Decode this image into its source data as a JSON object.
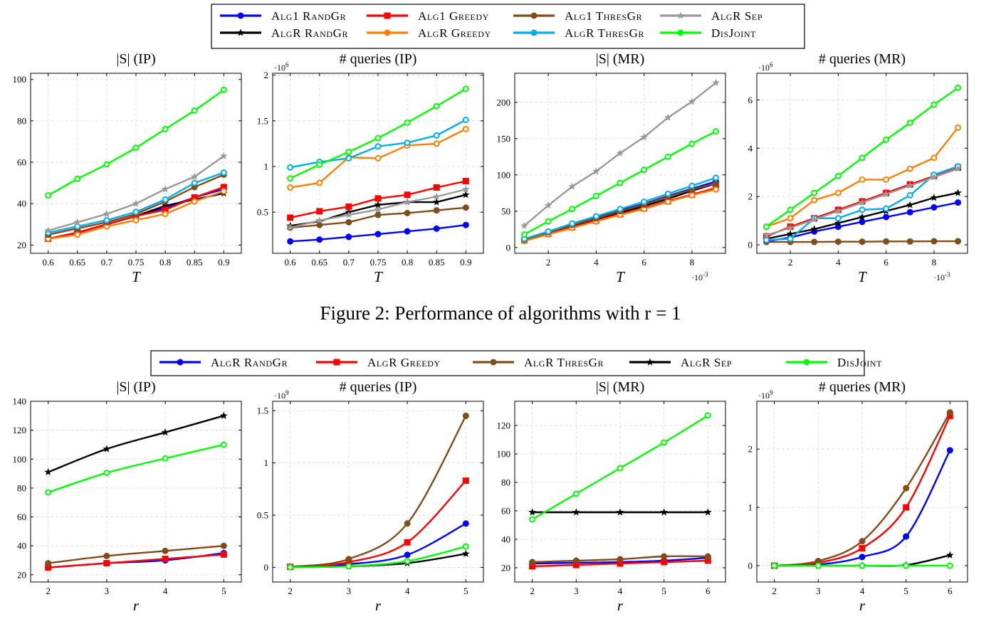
{
  "figure1": {
    "caption": "Figure 2: Performance of algorithms with r = 1",
    "legend": [
      {
        "label": "Alg1 RandGr",
        "color": "#0000ff",
        "marker": "circle"
      },
      {
        "label": "AlgR RandGr",
        "color": "#000000",
        "marker": "star"
      },
      {
        "label": "Alg1 Greedy",
        "color": "#ff0000",
        "marker": "square"
      },
      {
        "label": "AlgR Greedy",
        "color": "#ff8000",
        "marker": "circle"
      },
      {
        "label": "Alg1 ThresGr",
        "color": "#804d1a",
        "marker": "circle"
      },
      {
        "label": "AlgR ThresGr",
        "color": "#00aeef",
        "marker": "circle"
      },
      {
        "label": "AlgR Sep",
        "color": "#999999",
        "marker": "star"
      },
      {
        "label": "DisJoint",
        "color": "#00ff00",
        "marker": "circle"
      }
    ]
  },
  "figure2": {
    "legend": [
      {
        "label": "AlgR RandGr",
        "color": "#0000ff",
        "marker": "circle"
      },
      {
        "label": "AlgR Greedy",
        "color": "#ff0000",
        "marker": "square"
      },
      {
        "label": "AlgR ThresGr",
        "color": "#804d1a",
        "marker": "circle"
      },
      {
        "label": "AlgR Sep",
        "color": "#000000",
        "marker": "star"
      },
      {
        "label": "DisJoint",
        "color": "#00ff00",
        "marker": "circle"
      }
    ]
  },
  "chart_data": [
    {
      "type": "line",
      "title": "|S| (IP)",
      "xlabel": "T",
      "ylabel": "",
      "x": [
        0.6,
        0.65,
        0.7,
        0.75,
        0.8,
        0.85,
        0.9
      ],
      "xticks": [
        "0.6",
        "0.65",
        "0.7",
        "0.75",
        "0.8",
        "0.85",
        "0.9"
      ],
      "xlim": [
        0.57,
        0.93
      ],
      "yticks": [
        20,
        40,
        60,
        80,
        100
      ],
      "ylim": [
        16,
        103
      ],
      "scale_label": "",
      "grid": true,
      "series": [
        {
          "name": "Alg1 RandGr",
          "values": [
            23,
            26,
            30,
            34,
            38,
            43,
            47
          ]
        },
        {
          "name": "AlgR RandGr",
          "values": [
            23,
            26,
            30,
            34,
            39,
            42,
            45
          ]
        },
        {
          "name": "Alg1 Greedy",
          "values": [
            23,
            26,
            30,
            34,
            37,
            43,
            48
          ]
        },
        {
          "name": "AlgR Greedy",
          "values": [
            23,
            25,
            29,
            32,
            35,
            41,
            46
          ]
        },
        {
          "name": "Alg1 ThresGr",
          "values": [
            25,
            28,
            31,
            35,
            41,
            48,
            54
          ]
        },
        {
          "name": "AlgR ThresGr",
          "values": [
            26,
            29,
            32,
            36,
            42,
            50,
            55
          ]
        },
        {
          "name": "AlgR Sep",
          "values": [
            27,
            31,
            35,
            40,
            47,
            53,
            63
          ]
        },
        {
          "name": "DisJoint",
          "values": [
            44,
            52,
            59,
            67,
            76,
            85,
            95
          ]
        }
      ]
    },
    {
      "type": "line",
      "title": "# queries (IP)",
      "xlabel": "T",
      "ylabel": "",
      "x": [
        0.6,
        0.65,
        0.7,
        0.75,
        0.8,
        0.85,
        0.9
      ],
      "xticks": [
        "0.6",
        "0.65",
        "0.7",
        "0.75",
        "0.8",
        "0.85",
        "0.9"
      ],
      "xlim": [
        0.57,
        0.93
      ],
      "yticks": [
        0.5,
        1,
        1.5,
        2
      ],
      "ytick_labels": [
        "0.5",
        "1",
        "1.5",
        "2"
      ],
      "ylim": [
        0.05,
        2.02
      ],
      "scale_label": "·10^6",
      "grid": true,
      "series": [
        {
          "name": "Alg1 RandGr",
          "values": [
            0.18,
            0.2,
            0.23,
            0.26,
            0.29,
            0.32,
            0.36
          ]
        },
        {
          "name": "AlgR RandGr",
          "values": [
            0.35,
            0.4,
            0.5,
            0.58,
            0.61,
            0.61,
            0.69
          ]
        },
        {
          "name": "Alg1 Greedy",
          "values": [
            0.44,
            0.51,
            0.56,
            0.65,
            0.69,
            0.77,
            0.84
          ]
        },
        {
          "name": "AlgR Greedy",
          "values": [
            0.77,
            0.82,
            1.1,
            1.09,
            1.23,
            1.25,
            1.41
          ]
        },
        {
          "name": "Alg1 ThresGr",
          "values": [
            0.33,
            0.36,
            0.39,
            0.47,
            0.49,
            0.52,
            0.55
          ]
        },
        {
          "name": "AlgR ThresGr",
          "values": [
            0.99,
            1.05,
            1.09,
            1.22,
            1.26,
            1.34,
            1.51
          ]
        },
        {
          "name": "AlgR Sep",
          "values": [
            0.33,
            0.41,
            0.47,
            0.53,
            0.61,
            0.67,
            0.75
          ]
        },
        {
          "name": "DisJoint",
          "values": [
            0.87,
            1.02,
            1.16,
            1.31,
            1.48,
            1.66,
            1.85
          ]
        }
      ]
    },
    {
      "type": "line",
      "title": "|S| (MR)",
      "xlabel": "T",
      "ylabel": "",
      "x": [
        1,
        2,
        3,
        4,
        5,
        6,
        7,
        8,
        9
      ],
      "xticks": [
        "2",
        "4",
        "6",
        "8"
      ],
      "xtick_values": [
        2,
        4,
        6,
        8
      ],
      "xlim": [
        0.6,
        9.4
      ],
      "yticks": [
        0,
        50,
        100,
        150,
        200
      ],
      "ylim": [
        -8,
        240
      ],
      "scale_label": "·10^-3",
      "grid": true,
      "series": [
        {
          "name": "Alg1 RandGr",
          "values": [
            11,
            21,
            31,
            41,
            51,
            60,
            71,
            81,
            91
          ]
        },
        {
          "name": "AlgR RandGr",
          "values": [
            10,
            20,
            29,
            39,
            48,
            57,
            67,
            78,
            88
          ]
        },
        {
          "name": "Alg1 Greedy",
          "values": [
            10,
            19,
            28,
            37,
            46,
            54,
            64,
            73,
            82
          ]
        },
        {
          "name": "AlgR Greedy",
          "values": [
            9,
            18,
            27,
            36,
            45,
            53,
            63,
            72,
            80
          ]
        },
        {
          "name": "Alg1 ThresGr",
          "values": [
            11,
            21,
            31,
            40,
            50,
            59,
            70,
            80,
            88
          ]
        },
        {
          "name": "AlgR ThresGr",
          "values": [
            12,
            22,
            33,
            43,
            53,
            63,
            74,
            85,
            96
          ]
        },
        {
          "name": "AlgR Sep",
          "values": [
            30,
            58,
            84,
            105,
            130,
            152,
            179,
            201,
            227
          ]
        },
        {
          "name": "DisJoint",
          "values": [
            18,
            36,
            53,
            71,
            89,
            107,
            125,
            143,
            160
          ]
        }
      ]
    },
    {
      "type": "line",
      "title": "# queries (MR)",
      "xlabel": "T",
      "ylabel": "",
      "x": [
        1,
        2,
        3,
        4,
        5,
        6,
        7,
        8,
        9
      ],
      "xticks": [
        "2",
        "4",
        "6",
        "8"
      ],
      "xtick_values": [
        2,
        4,
        6,
        8
      ],
      "xlim": [
        0.6,
        9.4
      ],
      "yticks": [
        0,
        2,
        4,
        6
      ],
      "ylim": [
        -0.35,
        7.1
      ],
      "scale_label": "·10^6",
      "scale_label_x": "·10^-3",
      "grid": true,
      "series": [
        {
          "name": "Alg1 RandGr",
          "values": [
            0.15,
            0.3,
            0.55,
            0.75,
            0.95,
            1.15,
            1.35,
            1.55,
            1.75
          ]
        },
        {
          "name": "AlgR RandGr",
          "values": [
            0.25,
            0.45,
            0.65,
            0.9,
            1.15,
            1.4,
            1.65,
            1.95,
            2.15
          ]
        },
        {
          "name": "Alg1 Greedy",
          "values": [
            0.35,
            0.75,
            1.1,
            1.45,
            1.8,
            2.15,
            2.5,
            2.85,
            3.2
          ]
        },
        {
          "name": "AlgR Greedy",
          "values": [
            0.75,
            1.1,
            1.85,
            2.15,
            2.7,
            2.7,
            3.15,
            3.6,
            4.85
          ]
        },
        {
          "name": "Alg1 ThresGr",
          "values": [
            0.12,
            0.12,
            0.12,
            0.13,
            0.13,
            0.14,
            0.14,
            0.15,
            0.15
          ]
        },
        {
          "name": "AlgR ThresGr",
          "values": [
            0.2,
            0.25,
            1.1,
            1.1,
            1.45,
            1.5,
            2.05,
            2.9,
            3.25
          ]
        },
        {
          "name": "AlgR Sep",
          "values": [
            0.4,
            0.7,
            1.05,
            1.4,
            1.75,
            2.1,
            2.45,
            2.8,
            3.15
          ]
        },
        {
          "name": "DisJoint",
          "values": [
            0.75,
            1.45,
            2.15,
            2.85,
            3.6,
            4.35,
            5.05,
            5.8,
            6.5
          ]
        }
      ]
    },
    {
      "type": "line",
      "title": "|S| (IP)",
      "xlabel": "r",
      "ylabel": "",
      "x": [
        2,
        3,
        4,
        5
      ],
      "xticks": [
        "2",
        "3",
        "4",
        "5"
      ],
      "xtick_values": [
        2,
        3,
        4,
        5
      ],
      "xlim": [
        1.7,
        5.3
      ],
      "yticks": [
        20,
        40,
        60,
        80,
        100,
        120,
        140
      ],
      "ylim": [
        15,
        140
      ],
      "scale_label": "",
      "grid": true,
      "series": [
        {
          "name": "AlgR RandGr",
          "values": [
            25,
            28,
            30,
            35
          ]
        },
        {
          "name": "AlgR Greedy",
          "values": [
            25,
            28,
            31,
            34
          ]
        },
        {
          "name": "AlgR ThresGr",
          "values": [
            28,
            33,
            36.5,
            40
          ]
        },
        {
          "name": "AlgR Sep",
          "values": [
            91,
            107,
            118.5,
            130
          ]
        },
        {
          "name": "DisJoint",
          "values": [
            77,
            90.5,
            100.5,
            110
          ]
        }
      ]
    },
    {
      "type": "line",
      "title": "# queries (IP)",
      "xlabel": "r",
      "ylabel": "",
      "x": [
        2,
        3,
        4,
        5
      ],
      "xticks": [
        "2",
        "3",
        "4",
        "5"
      ],
      "xtick_values": [
        2,
        3,
        4,
        5
      ],
      "xlim": [
        1.7,
        5.3
      ],
      "yticks": [
        0,
        0.5,
        1,
        1.5
      ],
      "ytick_labels": [
        "0",
        "0.5",
        "1",
        "1.5"
      ],
      "ylim": [
        -0.14,
        1.59
      ],
      "scale_label": "·10^9",
      "grid": true,
      "series": [
        {
          "name": "AlgR RandGr",
          "values": [
            0.005,
            0.03,
            0.12,
            0.42
          ]
        },
        {
          "name": "AlgR Greedy",
          "values": [
            0.005,
            0.05,
            0.24,
            0.83
          ]
        },
        {
          "name": "AlgR ThresGr",
          "values": [
            0.005,
            0.08,
            0.42,
            1.45
          ]
        },
        {
          "name": "AlgR Sep",
          "values": [
            0.002,
            0.01,
            0.04,
            0.13
          ]
        },
        {
          "name": "DisJoint",
          "values": [
            0.002,
            0.01,
            0.06,
            0.2
          ]
        }
      ]
    },
    {
      "type": "line",
      "title": "|S| (MR)",
      "xlabel": "r",
      "ylabel": "",
      "x": [
        2,
        3,
        4,
        5,
        6
      ],
      "xticks": [
        "2",
        "3",
        "4",
        "5",
        "6"
      ],
      "xtick_values": [
        2,
        3,
        4,
        5,
        6
      ],
      "xlim": [
        1.6,
        6.4
      ],
      "yticks": [
        20,
        40,
        60,
        80,
        100,
        120
      ],
      "ylim": [
        10,
        137
      ],
      "scale_label": "",
      "grid": true,
      "series": [
        {
          "name": "AlgR RandGr",
          "values": [
            23,
            23.5,
            24,
            25,
            27
          ]
        },
        {
          "name": "AlgR Greedy",
          "values": [
            21,
            22,
            23,
            24,
            25
          ]
        },
        {
          "name": "AlgR ThresGr",
          "values": [
            24,
            25,
            26,
            28,
            28
          ]
        },
        {
          "name": "AlgR Sep",
          "values": [
            59,
            59,
            59,
            59,
            59
          ]
        },
        {
          "name": "DisJoint",
          "values": [
            54,
            72,
            90,
            108,
            127
          ]
        }
      ]
    },
    {
      "type": "line",
      "title": "# queries (MR)",
      "xlabel": "r",
      "ylabel": "",
      "x": [
        2,
        3,
        4,
        5,
        6
      ],
      "xticks": [
        "2",
        "3",
        "4",
        "5",
        "6"
      ],
      "xtick_values": [
        2,
        3,
        4,
        5,
        6
      ],
      "xlim": [
        1.6,
        6.4
      ],
      "yticks": [
        0,
        1,
        2
      ],
      "ylim": [
        -0.28,
        2.82
      ],
      "scale_label": "·10^9",
      "grid": true,
      "series": [
        {
          "name": "AlgR RandGr",
          "values": [
            0.0,
            0.02,
            0.15,
            0.5,
            1.98
          ]
        },
        {
          "name": "AlgR Greedy",
          "values": [
            0.0,
            0.05,
            0.3,
            1.0,
            2.57
          ]
        },
        {
          "name": "AlgR ThresGr",
          "values": [
            0.0,
            0.08,
            0.42,
            1.33,
            2.63
          ]
        },
        {
          "name": "AlgR Sep",
          "values": [
            0.0,
            0.0,
            0.0,
            0.01,
            0.18
          ]
        },
        {
          "name": "DisJoint",
          "values": [
            0.0,
            0.0,
            0.0,
            0.0,
            0.0
          ]
        }
      ]
    }
  ]
}
